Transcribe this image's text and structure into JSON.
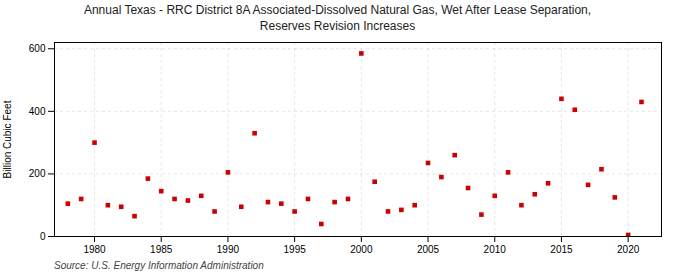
{
  "chart_data": {
    "type": "scatter",
    "title": "Annual Texas - RRC District 8A Associated-Dissolved Natural Gas, Wet After Lease Separation,\nReserves Revision Increases",
    "ylabel": "Billion Cubic Feet",
    "annotations": [
      "Source: U.S. Energy Information Administration"
    ],
    "x": [
      1978,
      1979,
      1980,
      1981,
      1982,
      1983,
      1984,
      1985,
      1986,
      1987,
      1988,
      1989,
      1990,
      1991,
      1992,
      1993,
      1994,
      1995,
      1996,
      1997,
      1998,
      1999,
      2000,
      2001,
      2002,
      2003,
      2004,
      2005,
      2006,
      2007,
      2008,
      2009,
      2010,
      2011,
      2012,
      2013,
      2014,
      2015,
      2016,
      2017,
      2018,
      2019,
      2020,
      2021
    ],
    "values": [
      105,
      120,
      300,
      100,
      95,
      65,
      185,
      145,
      120,
      115,
      130,
      80,
      205,
      95,
      330,
      110,
      105,
      80,
      120,
      40,
      110,
      120,
      585,
      175,
      80,
      85,
      100,
      235,
      190,
      260,
      155,
      70,
      130,
      205,
      100,
      135,
      170,
      440,
      405,
      165,
      215,
      125,
      5,
      430
    ],
    "color": "#cc0000",
    "marker": "square",
    "xlim": [
      1977,
      2022.5
    ],
    "xticks": [
      1980,
      1985,
      1990,
      1995,
      2000,
      2005,
      2010,
      2015,
      2020
    ],
    "ylim": [
      0,
      620
    ],
    "yticks": [
      0,
      200,
      400,
      600
    ],
    "grid": true
  }
}
